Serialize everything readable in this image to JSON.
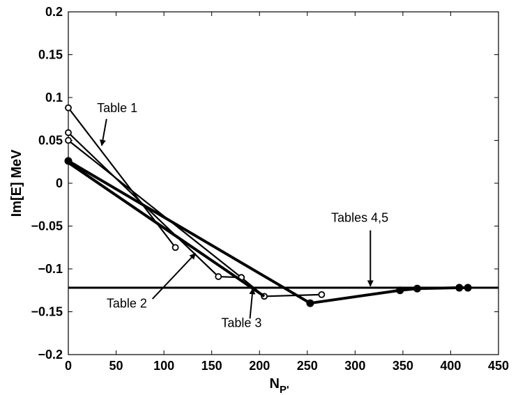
{
  "chart_data": {
    "type": "line",
    "title": "",
    "xlabel": "N",
    "xlabel_sub": "P'",
    "ylabel": "Im[E] MeV",
    "xlim": [
      0,
      450
    ],
    "ylim": [
      -0.2,
      0.2
    ],
    "xticks": [
      0,
      50,
      100,
      150,
      200,
      250,
      300,
      350,
      400,
      450
    ],
    "yticks": [
      -0.2,
      -0.15,
      -0.1,
      -0.05,
      0,
      0.05,
      0.1,
      0.15,
      0.2
    ],
    "xtick_labels": [
      "0",
      "50",
      "100",
      "150",
      "200",
      "250",
      "300",
      "350",
      "400",
      "450"
    ],
    "ytick_labels": [
      "−0.2",
      "−0.15",
      "−0.1",
      "−0.05",
      "0",
      "0.05",
      "0.1",
      "0.15",
      "0.2"
    ],
    "grid": false,
    "series": [
      {
        "points": [
          [
            0,
            0.088
          ],
          [
            112,
            -0.075
          ]
        ],
        "marker": "open-circle",
        "line_width": "thin"
      },
      {
        "points": [
          [
            0,
            0.059
          ],
          [
            157,
            -0.109
          ],
          [
            181,
            -0.11
          ]
        ],
        "marker": "open-circle",
        "line_width": "thin"
      },
      {
        "points": [
          [
            0,
            0.05
          ],
          [
            181,
            -0.11
          ],
          [
            205,
            -0.132
          ],
          [
            265,
            -0.13
          ]
        ],
        "marker": "open-circle",
        "line_width": "thin"
      },
      {
        "points": [
          [
            0,
            0.026
          ],
          [
            253,
            -0.14
          ],
          [
            347,
            -0.125
          ],
          [
            365,
            -0.123
          ],
          [
            409,
            -0.122
          ],
          [
            418,
            -0.122
          ]
        ],
        "marker": "filled-circle",
        "line_width": "thick"
      },
      {
        "points": [
          [
            0,
            0.024
          ],
          [
            205,
            -0.132
          ]
        ],
        "marker": "none",
        "line_width": "thick"
      }
    ],
    "hlines": [
      {
        "y": -0.122
      }
    ],
    "annotations": [
      {
        "text": "Table 1",
        "text_x": 30,
        "text_y": 0.083,
        "arrow_from": [
          40,
          0.075
        ],
        "arrow_to": [
          35,
          0.044
        ]
      },
      {
        "text": "Table 2",
        "text_x": 40,
        "text_y": -0.145,
        "arrow_from": [
          88,
          -0.135
        ],
        "arrow_to": [
          133,
          -0.082
        ]
      },
      {
        "text": "Table 3",
        "text_x": 160,
        "text_y": -0.168,
        "arrow_from": [
          190,
          -0.158
        ],
        "arrow_to": [
          193,
          -0.123
        ]
      },
      {
        "text": "Tables 4,5",
        "text_x": 275,
        "text_y": -0.045,
        "arrow_from": [
          316,
          -0.055
        ],
        "arrow_to": [
          316,
          -0.12
        ]
      }
    ]
  }
}
